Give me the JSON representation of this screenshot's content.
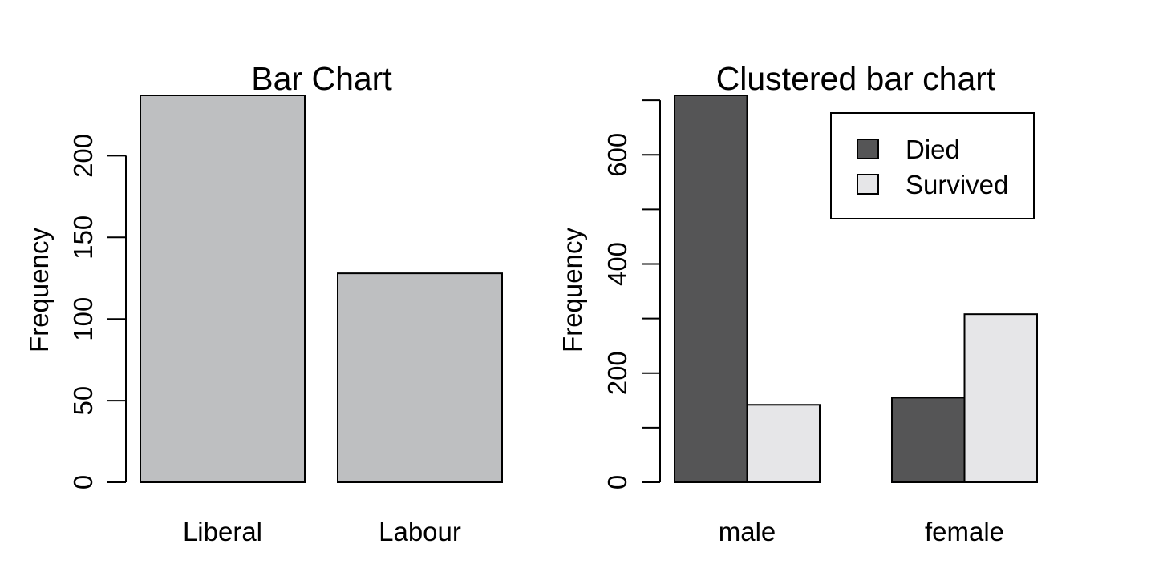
{
  "chart_data": [
    {
      "type": "bar",
      "title": "Bar Chart",
      "xlabel": "",
      "ylabel": "Frequency",
      "categories": [
        "Liberal",
        "Labour"
      ],
      "values": [
        237,
        128
      ],
      "ylim": [
        0,
        237
      ],
      "yticks": [
        0,
        50,
        100,
        150,
        200
      ],
      "bar_color": "#bebfc1",
      "grid": false,
      "legend": null
    },
    {
      "type": "bar",
      "title": "Clustered bar chart",
      "xlabel": "",
      "ylabel": "Frequency",
      "categories": [
        "male",
        "female"
      ],
      "series": [
        {
          "name": "Died",
          "values": [
            709,
            155
          ],
          "color": "#555556"
        },
        {
          "name": "Survived",
          "values": [
            142,
            308
          ],
          "color": "#e6e6e8"
        }
      ],
      "ylim": [
        0,
        709
      ],
      "yticks": [
        0,
        100,
        200,
        300,
        400,
        500,
        600,
        700
      ],
      "ytick_labels": [
        "0",
        "",
        "200",
        "",
        "400",
        "",
        "600",
        ""
      ],
      "grid": false,
      "legend": "top-right"
    }
  ]
}
